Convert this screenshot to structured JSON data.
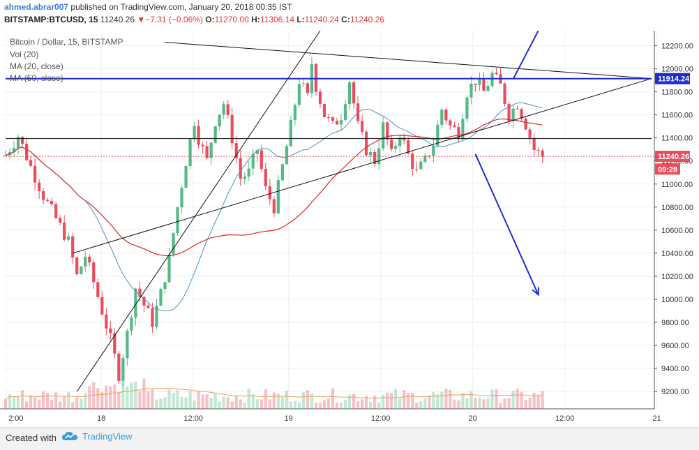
{
  "header": {
    "author": "ahmed.abrar007",
    "published_text": "published on TradingView.com, January 20, 2018 00:35 IST",
    "symbol": "BITSTAMP:BTCUSD, 15",
    "last": "11240.26",
    "change_arrow": "▼",
    "change": "−7.31 (−0.06%)",
    "o_label": "O:",
    "o_value": "11270.00",
    "h_label": "H:",
    "h_value": "11306.14",
    "l_label": "L:",
    "l_value": "11240.24",
    "c_label": "C:",
    "c_value": "11240.26"
  },
  "legend": {
    "title": "Bitcoin / Dollar, 15, BITSTAMP",
    "vol": "Vol (20)",
    "ma20": "MA (20, close)",
    "ma50": "MA (50, close)"
  },
  "footer": {
    "created_with": "Created with",
    "brand": "TradingView"
  },
  "colors": {
    "up": "#53b987",
    "down": "#eb4d5c",
    "ma20": "#4a90c2",
    "ma50": "#e0252a",
    "volma": "#f39c5a",
    "blue_line": "#1f2bcc",
    "grid": "#eef0f3"
  },
  "chart_data": {
    "type": "candlestick",
    "title": "Bitcoin / Dollar, 15, BITSTAMP",
    "x_tick_labels": [
      "2:00",
      "18",
      "12:00",
      "19",
      "12:00",
      "20",
      "12:00",
      "21"
    ],
    "y_tick_labels": [
      "9200.00",
      "9400.00",
      "9600.00",
      "9800.00",
      "10000.00",
      "10200.00",
      "10400.00",
      "10600.00",
      "10800.00",
      "11000.00",
      "11200.00",
      "11400.00",
      "11600.00",
      "11800.00",
      "12000.00",
      "12200.00"
    ],
    "ylim": [
      9050,
      12330
    ],
    "price_labels": [
      {
        "text": "11914.24",
        "value": 11914.24,
        "color": "#1f2bcc"
      },
      {
        "text": "11240.26",
        "value": 11240.26,
        "color": "#eb4d5c"
      },
      {
        "text": "09:28",
        "value": 11130,
        "color": "#eb4d5c"
      }
    ],
    "close_path": [
      [
        0,
        11250
      ],
      [
        3,
        11420
      ],
      [
        6,
        11150
      ],
      [
        9,
        10900
      ],
      [
        12,
        10700
      ],
      [
        15,
        10500
      ],
      [
        17,
        10200
      ],
      [
        19,
        10380
      ],
      [
        21,
        10150
      ],
      [
        23,
        9900
      ],
      [
        25,
        9650
      ],
      [
        27,
        9350
      ],
      [
        29,
        9700
      ],
      [
        31,
        10100
      ],
      [
        33,
        9950
      ],
      [
        35,
        9800
      ],
      [
        37,
        10050
      ],
      [
        39,
        10350
      ],
      [
        41,
        10800
      ],
      [
        43,
        11200
      ],
      [
        45,
        11550
      ],
      [
        46,
        11400
      ],
      [
        48,
        11200
      ],
      [
        50,
        11550
      ],
      [
        52,
        11700
      ],
      [
        54,
        11400
      ],
      [
        56,
        11050
      ],
      [
        58,
        11100
      ],
      [
        60,
        11300
      ],
      [
        62,
        10950
      ],
      [
        64,
        10800
      ],
      [
        66,
        11150
      ],
      [
        68,
        11500
      ],
      [
        70,
        11900
      ],
      [
        72,
        11750
      ],
      [
        73,
        12050
      ],
      [
        74,
        11850
      ],
      [
        76,
        11600
      ],
      [
        78,
        11500
      ],
      [
        80,
        11600
      ],
      [
        82,
        11900
      ],
      [
        84,
        11500
      ],
      [
        86,
        11300
      ],
      [
        88,
        11200
      ],
      [
        90,
        11500
      ],
      [
        92,
        11250
      ],
      [
        94,
        11450
      ],
      [
        96,
        11250
      ],
      [
        98,
        11100
      ],
      [
        100,
        11200
      ],
      [
        102,
        11350
      ],
      [
        104,
        11650
      ],
      [
        106,
        11500
      ],
      [
        108,
        11450
      ],
      [
        110,
        11800
      ],
      [
        112,
        11900
      ],
      [
        114,
        11800
      ],
      [
        116,
        11950
      ],
      [
        118,
        11850
      ],
      [
        120,
        11600
      ],
      [
        122,
        11700
      ],
      [
        124,
        11520
      ],
      [
        126,
        11300
      ],
      [
        128,
        11240
      ]
    ],
    "trendlines": [
      {
        "name": "lower-trendline",
        "from": [
          16,
          10400
        ],
        "to": [
          154,
          11915
        ],
        "color": "#111"
      },
      {
        "name": "upper-trendline",
        "from": [
          38,
          12230
        ],
        "to": [
          154,
          11915
        ],
        "color": "#111"
      },
      {
        "name": "steep-support",
        "from": [
          17,
          9200
        ],
        "to": [
          75,
          12330
        ],
        "color": "#111"
      },
      {
        "name": "horizontal-level",
        "from": [
          0,
          11394
        ],
        "to": [
          154,
          11394
        ],
        "color": "#111"
      },
      {
        "name": "resistance-line",
        "from": [
          0,
          11914
        ],
        "to": [
          154,
          11914
        ],
        "color": "#1f2bcc"
      }
    ],
    "arrows": [
      {
        "name": "up-arrow",
        "from": [
          121,
          11910
        ],
        "to": [
          127,
          12330
        ]
      },
      {
        "name": "down-arrow",
        "from": [
          112,
          11260
        ],
        "to": [
          127,
          10040
        ]
      }
    ]
  }
}
